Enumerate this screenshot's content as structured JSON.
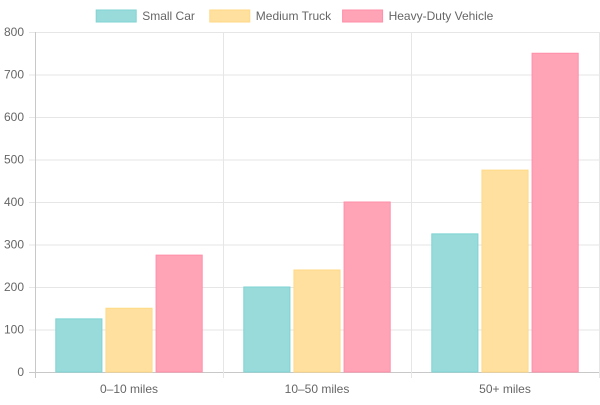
{
  "chart_data": {
    "type": "bar",
    "title": "",
    "xlabel": "",
    "ylabel": "",
    "categories": [
      "0–10 miles",
      "10–50 miles",
      "50+ miles"
    ],
    "series": [
      {
        "name": "Small Car",
        "values": [
          125,
          200,
          325
        ],
        "color": "#7fd3d3",
        "fill": "#99dbdb"
      },
      {
        "name": "Medium Truck",
        "values": [
          150,
          240,
          475
        ],
        "color": "#ffd985",
        "fill": "#ffe09e"
      },
      {
        "name": "Heavy-Duty Vehicle",
        "values": [
          275,
          400,
          750
        ],
        "color": "#ff8fa8",
        "fill": "#ffa3b7"
      }
    ],
    "ylim": [
      0,
      800
    ],
    "yticks": [
      0,
      100,
      200,
      300,
      400,
      500,
      600,
      700,
      800
    ],
    "grid": true,
    "legend": "top-center"
  }
}
